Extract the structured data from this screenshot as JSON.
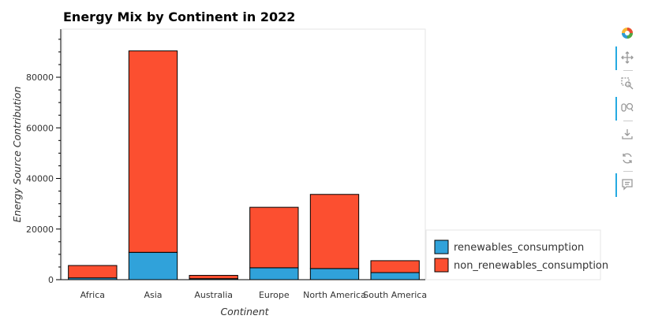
{
  "chart_data": {
    "type": "bar",
    "stacked": true,
    "title": "Energy Mix by Continent in 2022",
    "xlabel": "Continent",
    "ylabel": "Energy Source Contribution",
    "categories": [
      "Africa",
      "Asia",
      "Australia",
      "Europe",
      "North America",
      "South America"
    ],
    "series": [
      {
        "name": "renewables_consumption",
        "color": "#30a2da",
        "values": [
          700,
          10800,
          400,
          4700,
          4400,
          2800
        ]
      },
      {
        "name": "non_renewables_consumption",
        "color": "#fc4f30",
        "values": [
          4900,
          79600,
          1300,
          23900,
          29300,
          4700
        ]
      }
    ],
    "yticks": [
      0,
      20000,
      40000,
      60000,
      80000
    ],
    "ylim": [
      0,
      99000
    ],
    "grid": false,
    "legend": "bottom-right-outside"
  },
  "toolbar": {
    "tools": [
      "bokeh-logo-icon",
      "pan-icon",
      "box-zoom-icon",
      "wheel-zoom-icon",
      "save-icon",
      "reset-icon",
      "hover-icon"
    ]
  }
}
